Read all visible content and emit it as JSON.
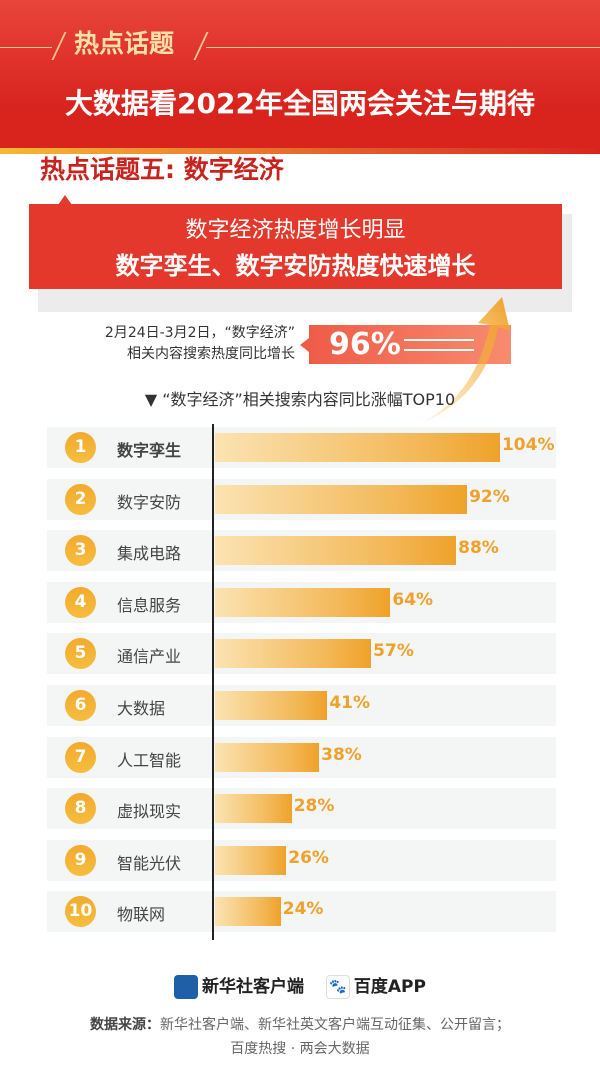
{
  "header": {
    "tag": "热点话题",
    "title": "大数据看2022年全国两会关注与期待"
  },
  "topic": {
    "title": "热点话题五: 数字经济"
  },
  "callout": {
    "line1": "数字经济热度增长明显",
    "line2": "数字孪生、数字安防热度快速增长"
  },
  "stat": {
    "text_line1": "2月24日-3月2日，“数字经济”",
    "text_line2": "相关内容搜索热度同比增长",
    "value": "96%"
  },
  "colors": {
    "brand_red": "#d9241e",
    "bar_orange": "#efa22a",
    "value_text": "#f0a12b"
  },
  "chart_data": {
    "type": "bar",
    "orientation": "horizontal",
    "title": "▼ “数字经济”相关搜索内容同比涨幅TOP10",
    "ranks": [
      "1",
      "2",
      "3",
      "4",
      "5",
      "6",
      "7",
      "8",
      "9",
      "10"
    ],
    "categories": [
      "数字孪生",
      "数字安防",
      "集成电路",
      "信息服务",
      "通信产业",
      "大数据",
      "人工智能",
      "虚拟现实",
      "智能光伏",
      "物联网"
    ],
    "values": [
      104,
      92,
      88,
      64,
      57,
      41,
      38,
      28,
      26,
      24
    ],
    "value_labels": [
      "104%",
      "92%",
      "88%",
      "64%",
      "57%",
      "41%",
      "38%",
      "28%",
      "26%",
      "24%"
    ],
    "unit": "%"
  },
  "footer": {
    "logo1": "新华社客户端",
    "logo2": "百度APP",
    "source_label": "数据来源：",
    "source_line1": "新华社客户端、新华社英文客户端互动征集、公开留言；",
    "source_line2": "百度热搜 · 两会大数据"
  }
}
